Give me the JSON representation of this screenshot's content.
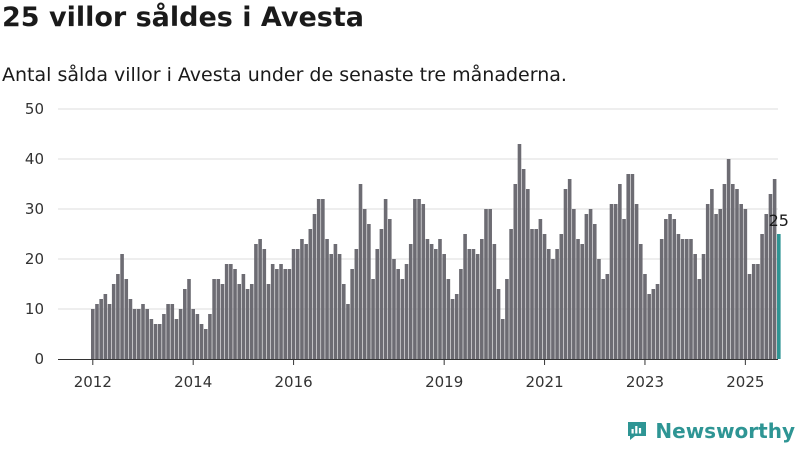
{
  "title": "25 villor såldes i Avesta",
  "subtitle": "Antal sålda villor i Avesta under de senaste tre månaderna.",
  "brand": {
    "name": "Newsworthy"
  },
  "colors": {
    "bar": "#6d6c73",
    "highlight": "#2e9594",
    "grid": "#dddddd",
    "axis": "#333333"
  },
  "chart_data": {
    "type": "bar",
    "x_start": "2012-01",
    "ylim": [
      0,
      50
    ],
    "yticks": [
      0,
      10,
      20,
      30,
      40,
      50
    ],
    "xticks": [
      "2012",
      "2014",
      "2016",
      "2019",
      "2021",
      "2023",
      "2025"
    ],
    "grid": true,
    "highlight_label": "25",
    "values": [
      10,
      11,
      12,
      13,
      11,
      15,
      17,
      21,
      16,
      12,
      10,
      10,
      11,
      10,
      8,
      7,
      7,
      9,
      11,
      11,
      8,
      10,
      14,
      16,
      10,
      9,
      7,
      6,
      9,
      16,
      16,
      15,
      19,
      19,
      18,
      15,
      17,
      14,
      15,
      23,
      24,
      22,
      15,
      19,
      18,
      19,
      18,
      18,
      22,
      22,
      24,
      23,
      26,
      29,
      32,
      32,
      24,
      21,
      23,
      21,
      15,
      11,
      18,
      22,
      35,
      30,
      27,
      16,
      22,
      26,
      32,
      28,
      20,
      18,
      16,
      19,
      23,
      32,
      32,
      31,
      24,
      23,
      22,
      24,
      21,
      16,
      12,
      13,
      18,
      25,
      22,
      22,
      21,
      24,
      30,
      30,
      23,
      14,
      8,
      16,
      26,
      35,
      43,
      38,
      34,
      26,
      26,
      28,
      25,
      22,
      20,
      22,
      25,
      34,
      36,
      30,
      24,
      23,
      29,
      30,
      27,
      20,
      16,
      17,
      31,
      31,
      35,
      28,
      37,
      37,
      31,
      23,
      17,
      13,
      14,
      15,
      24,
      28,
      29,
      28,
      25,
      24,
      24,
      24,
      21,
      16,
      21,
      31,
      34,
      29,
      30,
      35,
      40,
      35,
      34,
      31,
      30,
      17,
      19,
      19,
      25,
      29,
      33,
      36,
      25
    ]
  }
}
